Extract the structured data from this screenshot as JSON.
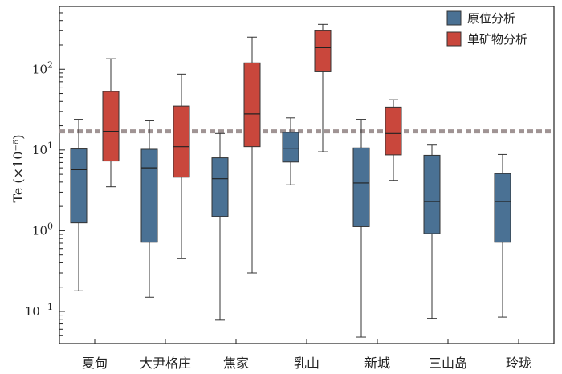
{
  "chart_data": {
    "type": "box",
    "ylabel": "Te (×10⁻⁶)",
    "y_scale": "log",
    "ylim": [
      0.04,
      600
    ],
    "y_ticks": [
      {
        "value": 0.1,
        "base": "10",
        "exp": "−1"
      },
      {
        "value": 1,
        "base": "10",
        "exp": "0"
      },
      {
        "value": 10,
        "base": "10",
        "exp": "1"
      },
      {
        "value": 100,
        "base": "10",
        "exp": "2"
      }
    ],
    "categories": [
      "夏甸",
      "大尹格庄",
      "焦家",
      "乳山",
      "新城",
      "三山岛",
      "玲珑"
    ],
    "legend": {
      "position": "top-right",
      "items": [
        {
          "label": "原位分析",
          "color": "#4a7194"
        },
        {
          "label": "单矿物分析",
          "color": "#c9473c"
        }
      ]
    },
    "reference_line": {
      "value": 17,
      "color": "#a09494",
      "style": "dashed"
    },
    "series": [
      {
        "name": "原位分析",
        "color": "#4a7194",
        "boxes": [
          {
            "category": "夏甸",
            "min": 0.18,
            "q1": 1.25,
            "median": 5.7,
            "q3": 10.3,
            "max": 24
          },
          {
            "category": "大尹格庄",
            "min": 0.15,
            "q1": 0.72,
            "median": 6.0,
            "q3": 10.2,
            "max": 23
          },
          {
            "category": "焦家",
            "min": 0.078,
            "q1": 1.5,
            "median": 4.4,
            "q3": 8.0,
            "max": 16
          },
          {
            "category": "乳山",
            "min": 3.7,
            "q1": 7.1,
            "median": 10.5,
            "q3": 16.5,
            "max": 25
          },
          {
            "category": "新城",
            "min": 0.048,
            "q1": 1.12,
            "median": 3.9,
            "q3": 10.6,
            "max": 24
          },
          {
            "category": "三山岛",
            "min": 0.082,
            "q1": 0.92,
            "median": 2.3,
            "q3": 8.6,
            "max": 11.5
          },
          {
            "category": "玲珑",
            "min": 0.085,
            "q1": 0.72,
            "median": 2.3,
            "q3": 5.1,
            "max": 8.8
          }
        ]
      },
      {
        "name": "单矿物分析",
        "color": "#c9473c",
        "boxes": [
          {
            "category": "夏甸",
            "min": 3.5,
            "q1": 7.3,
            "median": 17,
            "q3": 53,
            "max": 135
          },
          {
            "category": "大尹格庄",
            "min": 0.45,
            "q1": 4.6,
            "median": 11,
            "q3": 35,
            "max": 87
          },
          {
            "category": "焦家",
            "min": 0.3,
            "q1": 11,
            "median": 28,
            "q3": 120,
            "max": 250
          },
          {
            "category": "乳山",
            "min": 9.5,
            "q1": 93,
            "median": 185,
            "q3": 300,
            "max": 360
          },
          {
            "category": "新城",
            "min": 4.2,
            "q1": 8.7,
            "median": 16,
            "q3": 34,
            "max": 42
          }
        ]
      }
    ]
  }
}
